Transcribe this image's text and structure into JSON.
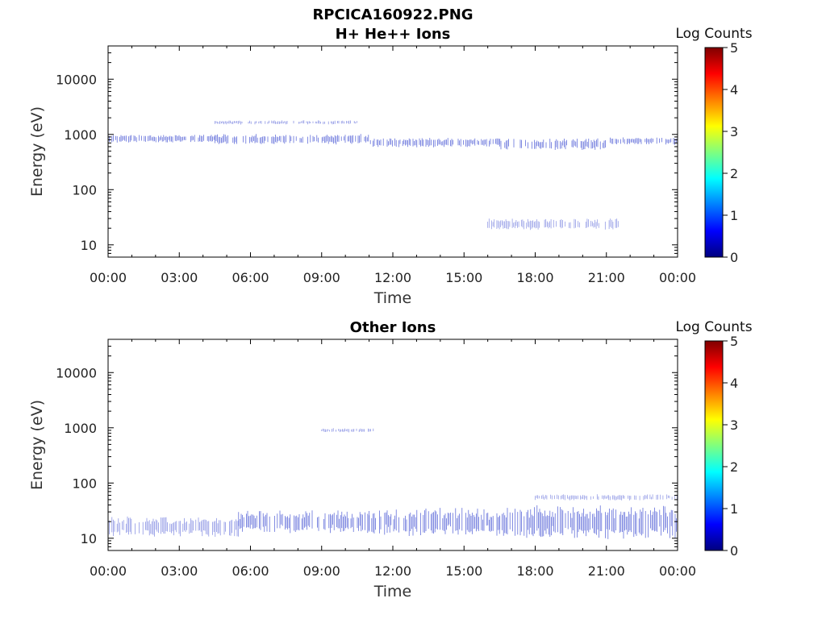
{
  "figure_title": "RPCICA160922.PNG",
  "colors": {
    "data_marks": "#2f3fcf",
    "colormap": [
      "#00007f",
      "#0000ff",
      "#007fff",
      "#00ffff",
      "#7fff7f",
      "#ffff00",
      "#ff7f00",
      "#ff0000",
      "#7f0000"
    ]
  },
  "chart_data": [
    {
      "type": "heatmap",
      "title": "H+ He++ Ions",
      "xlabel": "Time",
      "ylabel": "Energy (eV)",
      "x_tick_labels": [
        "00:00",
        "03:00",
        "06:00",
        "09:00",
        "12:00",
        "15:00",
        "18:00",
        "21:00",
        "00:00"
      ],
      "y_tick_labels": [
        "10",
        "100",
        "1000",
        "10000"
      ],
      "y_scale": "log",
      "ylim": [
        6,
        40000
      ],
      "xlim_hours": [
        0,
        24
      ],
      "colorbar": {
        "label": "Log Counts",
        "ticks": [
          "0",
          "1",
          "2",
          "3",
          "4",
          "5"
        ],
        "range": [
          0,
          5
        ]
      },
      "bands": [
        {
          "t_start_h": 0.0,
          "t_end_h": 4.5,
          "e_low_eV": 740,
          "e_high_eV": 950,
          "log_counts": 1.0
        },
        {
          "t_start_h": 4.5,
          "t_end_h": 11.0,
          "e_low_eV": 700,
          "e_high_eV": 950,
          "log_counts": 1.0
        },
        {
          "t_start_h": 11.0,
          "t_end_h": 16.5,
          "e_low_eV": 620,
          "e_high_eV": 820,
          "log_counts": 1.0
        },
        {
          "t_start_h": 16.5,
          "t_end_h": 21.0,
          "e_low_eV": 560,
          "e_high_eV": 800,
          "log_counts": 1.0
        },
        {
          "t_start_h": 21.0,
          "t_end_h": 24.0,
          "e_low_eV": 680,
          "e_high_eV": 860,
          "log_counts": 1.0
        },
        {
          "t_start_h": 4.5,
          "t_end_h": 10.5,
          "e_low_eV": 1550,
          "e_high_eV": 1750,
          "log_counts": 0.6
        },
        {
          "t_start_h": 16.0,
          "t_end_h": 21.5,
          "e_low_eV": 20,
          "e_high_eV": 28,
          "log_counts": 0.5
        }
      ]
    },
    {
      "type": "heatmap",
      "title": "Other Ions",
      "xlabel": "Time",
      "ylabel": "Energy (eV)",
      "x_tick_labels": [
        "00:00",
        "03:00",
        "06:00",
        "09:00",
        "12:00",
        "15:00",
        "18:00",
        "21:00",
        "00:00"
      ],
      "y_tick_labels": [
        "10",
        "100",
        "1000",
        "10000"
      ],
      "y_scale": "log",
      "ylim": [
        6,
        40000
      ],
      "xlim_hours": [
        0,
        24
      ],
      "colorbar": {
        "label": "Log Counts",
        "ticks": [
          "0",
          "1",
          "2",
          "3",
          "4",
          "5"
        ],
        "range": [
          0,
          5
        ]
      },
      "bands": [
        {
          "t_start_h": 0.0,
          "t_end_h": 5.5,
          "e_low_eV": 12,
          "e_high_eV": 22,
          "log_counts": 0.6
        },
        {
          "t_start_h": 5.5,
          "t_end_h": 11.0,
          "e_low_eV": 14,
          "e_high_eV": 28,
          "log_counts": 1.0
        },
        {
          "t_start_h": 11.0,
          "t_end_h": 16.5,
          "e_low_eV": 13,
          "e_high_eV": 30,
          "log_counts": 1.0
        },
        {
          "t_start_h": 16.5,
          "t_end_h": 24.0,
          "e_low_eV": 12,
          "e_high_eV": 32,
          "log_counts": 1.0
        },
        {
          "t_start_h": 9.0,
          "t_end_h": 11.2,
          "e_low_eV": 850,
          "e_high_eV": 960,
          "log_counts": 0.6
        },
        {
          "t_start_h": 18.0,
          "t_end_h": 24.0,
          "e_low_eV": 50,
          "e_high_eV": 60,
          "log_counts": 0.5
        }
      ]
    }
  ]
}
